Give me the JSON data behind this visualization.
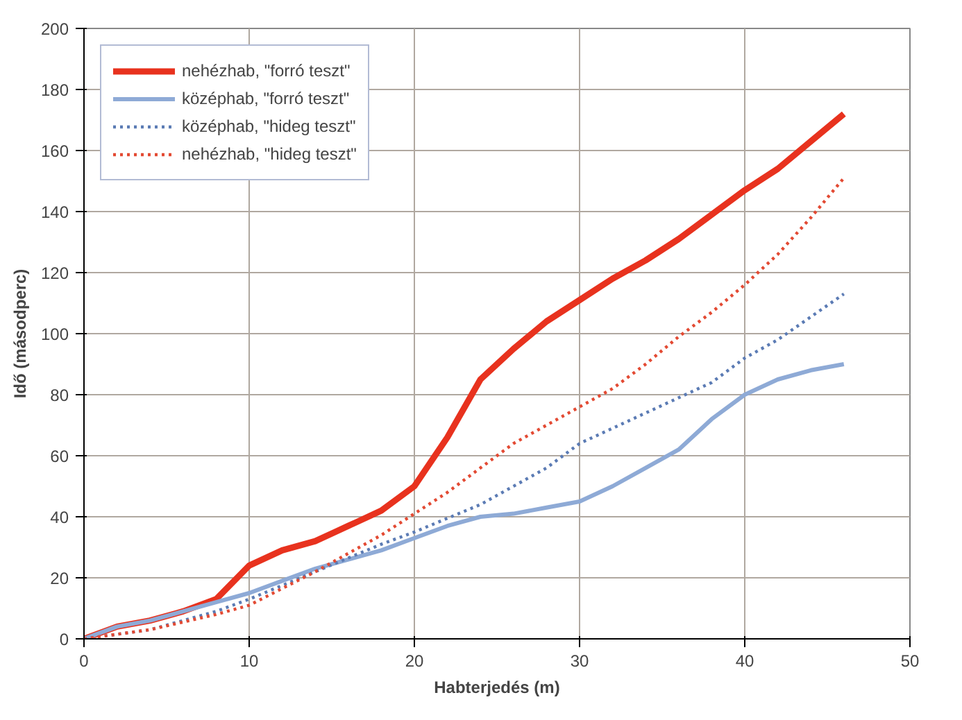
{
  "chart_data": {
    "type": "line",
    "xlabel": "Habterjedés (m)",
    "ylabel": "Idő (másodperc)",
    "xlim": [
      0,
      50
    ],
    "ylim": [
      0,
      200
    ],
    "xticks": [
      0,
      10,
      20,
      30,
      40,
      50
    ],
    "yticks": [
      0,
      20,
      40,
      60,
      80,
      100,
      120,
      140,
      160,
      180,
      200
    ],
    "grid": true,
    "legend": "top left",
    "marker": "none",
    "series": [
      {
        "name": "nehézhab, \"forró teszt\"",
        "color": "#e8321e",
        "line_style": "solid",
        "x": [
          0,
          2,
          4,
          6,
          8,
          10,
          12,
          14,
          16,
          18,
          20,
          22,
          24,
          26,
          28,
          30,
          32,
          34,
          36,
          38,
          40,
          42,
          44,
          46
        ],
        "values": [
          0,
          4,
          6,
          9,
          13,
          24,
          29,
          32,
          37,
          42,
          50,
          66,
          85,
          95,
          104,
          111,
          118,
          124,
          131,
          139,
          147,
          154,
          163,
          172
        ]
      },
      {
        "name": "középhab, \"forró teszt\"",
        "color": "#8eaad6",
        "line_style": "solid",
        "x": [
          0,
          2,
          4,
          6,
          8,
          10,
          12,
          14,
          16,
          18,
          20,
          22,
          24,
          26,
          28,
          30,
          32,
          34,
          36,
          38,
          40,
          42,
          44,
          46
        ],
        "values": [
          0,
          4,
          6,
          9,
          12,
          15,
          19,
          23,
          26,
          29,
          33,
          37,
          40,
          41,
          43,
          45,
          50,
          56,
          62,
          72,
          80,
          85,
          88,
          90
        ]
      },
      {
        "name": "középhab, \"hideg teszt\"",
        "color": "#5b7bb4",
        "line_style": "dotted",
        "x": [
          0,
          4,
          8,
          10,
          14,
          18,
          20,
          24,
          28,
          30,
          34,
          38,
          40,
          42,
          46
        ],
        "values": [
          0,
          3,
          9,
          13,
          22,
          31,
          35,
          44,
          56,
          64,
          74,
          84,
          92,
          98,
          113
        ]
      },
      {
        "name": "nehézhab, \"hideg teszt\"",
        "color": "#e34a33",
        "line_style": "dotted",
        "x": [
          0,
          4,
          8,
          10,
          14,
          18,
          20,
          22,
          24,
          26,
          28,
          30,
          32,
          34,
          36,
          38,
          40,
          42,
          44,
          46
        ],
        "values": [
          0,
          3,
          8,
          11,
          22,
          34,
          41,
          48,
          56,
          64,
          70,
          76,
          82,
          90,
          99,
          107,
          116,
          126,
          138,
          151
        ]
      }
    ]
  }
}
